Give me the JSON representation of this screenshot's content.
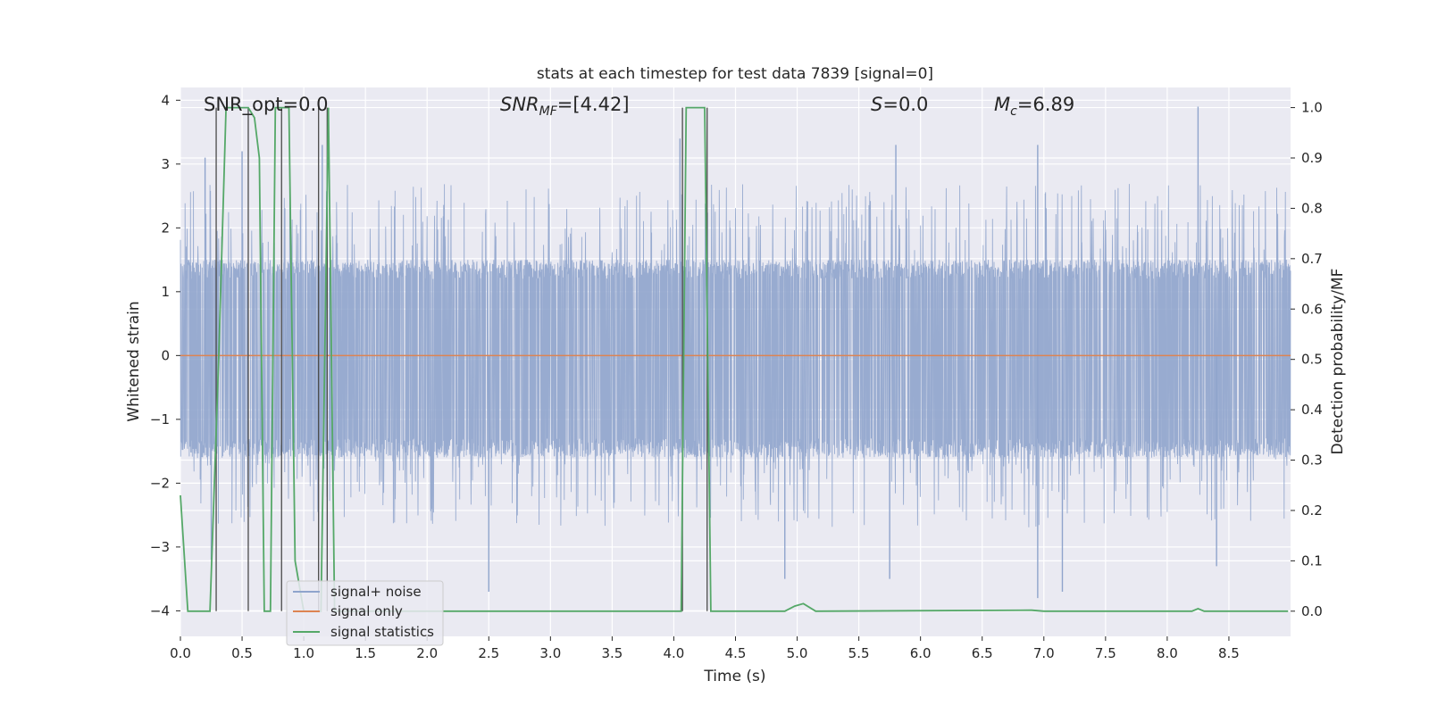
{
  "chart_data": {
    "type": "line",
    "title": "stats at each timestep for test data 7839 [signal=0]",
    "xlabel": "Time (s)",
    "ylabel": "Whitened strain",
    "ylabel_right": "Detection probability/MF",
    "xlim": [
      0.0,
      9.0
    ],
    "ylim": [
      -4.4,
      4.2
    ],
    "ylim_right": [
      -0.05,
      1.04
    ],
    "x_ticks": [
      "0.0",
      "0.5",
      "1.0",
      "1.5",
      "2.0",
      "2.5",
      "3.0",
      "3.5",
      "4.0",
      "4.5",
      "5.0",
      "5.5",
      "6.0",
      "6.5",
      "7.0",
      "7.5",
      "8.0",
      "8.5"
    ],
    "y_ticks": [
      "4",
      "3",
      "2",
      "1",
      "0",
      "−1",
      "−2",
      "−3",
      "−4"
    ],
    "y_right_ticks": [
      "1.0",
      "0.9",
      "0.8",
      "0.7",
      "0.6",
      "0.5",
      "0.4",
      "0.3",
      "0.2",
      "0.1",
      "0.0"
    ],
    "annotations": {
      "snr_opt": "SNR_opt=0.0",
      "snr_mf_pre": "SNR",
      "snr_mf_sub": "MF",
      "snr_mf_post": "=[4.42]",
      "s_label": "S",
      "s_value": "=0.0",
      "mc_pre": "M",
      "mc_sub": "c",
      "mc_post": "=6.89"
    },
    "legend": {
      "placement": "lower-left",
      "entries": [
        "signal+ noise",
        "signal only",
        "signal statistics"
      ]
    },
    "colors": {
      "noise": "#8fa4cc",
      "signal": "#dd8452",
      "stats": "#55a868",
      "vlines": "#4a4a4a",
      "plot_bg": "#eaeaf2",
      "grid": "#ffffff"
    },
    "series": [
      {
        "name": "signal+ noise",
        "description": "whitened strain noise, envelope approx ±1.5 with spikes to about +3.9 / −3.8",
        "envelope": [
          -1.6,
          1.5
        ],
        "spikes": [
          [
            0.2,
            3.1
          ],
          [
            0.5,
            3.2
          ],
          [
            1.15,
            3.3
          ],
          [
            4.05,
            3.4
          ],
          [
            5.8,
            3.3
          ],
          [
            6.95,
            3.3
          ],
          [
            8.25,
            3.9
          ],
          [
            0.25,
            -3.2
          ],
          [
            2.5,
            -3.7
          ],
          [
            4.9,
            -3.5
          ],
          [
            5.75,
            -3.5
          ],
          [
            6.95,
            -3.8
          ],
          [
            7.15,
            -3.7
          ],
          [
            8.4,
            -3.3
          ]
        ]
      },
      {
        "name": "signal only",
        "x": [
          0.0,
          9.0
        ],
        "y": [
          0.0,
          0.0
        ]
      },
      {
        "name": "signal statistics",
        "axis": "right",
        "x": [
          0.0,
          0.06,
          0.24,
          0.31,
          0.37,
          0.55,
          0.6,
          0.64,
          0.68,
          0.73,
          0.77,
          0.8,
          0.88,
          0.93,
          1.0,
          1.14,
          1.2,
          1.25,
          1.33,
          4.06,
          4.1,
          4.18,
          4.25,
          4.3,
          4.4,
          4.9,
          4.98,
          5.05,
          5.15,
          6.9,
          7.0,
          8.2,
          8.25,
          8.3,
          8.98
        ],
        "y": [
          0.23,
          0.0,
          0.0,
          0.5,
          1.0,
          1.0,
          0.98,
          0.9,
          0.0,
          0.0,
          1.0,
          1.0,
          1.0,
          0.1,
          0.0,
          0.0,
          1.0,
          0.0,
          0.0,
          0.0,
          1.0,
          1.0,
          1.0,
          0.0,
          0.0,
          0.0,
          0.01,
          0.015,
          0.0,
          0.002,
          0.0,
          0.0,
          0.005,
          0.0,
          0.0
        ]
      }
    ],
    "vertical_lines_x": [
      0.29,
      0.55,
      0.82,
      1.12,
      1.19,
      4.07,
      4.27
    ]
  }
}
